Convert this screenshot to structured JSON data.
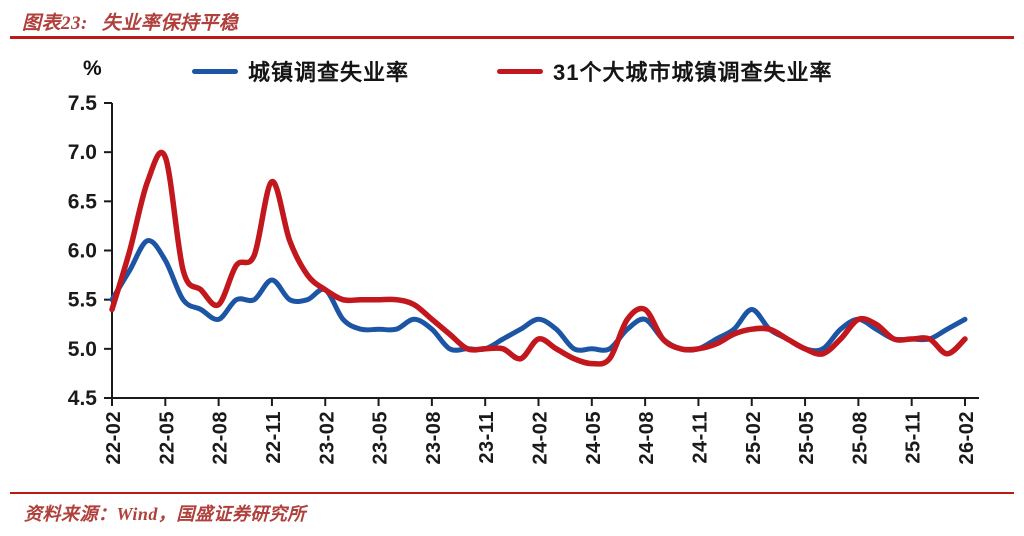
{
  "header": {
    "figure_label": "图表23:",
    "figure_title": "失业率保持平稳"
  },
  "footer": {
    "source_label": "资料来源：Wind，国盛证券研究所"
  },
  "colors": {
    "accent_rule": "#bb1a16",
    "title_red": "#b0403c",
    "axis": "#1a1a1a",
    "tick_text": "#1a1a1a"
  },
  "chart_data": {
    "type": "line",
    "title": "失业率保持平稳",
    "unit_label": "%",
    "ylim": [
      4.5,
      7.5
    ],
    "yticks": [
      7.5,
      7.0,
      6.5,
      6.0,
      5.5,
      5.0,
      4.5
    ],
    "grid": false,
    "legend_position": "top",
    "x_start": "22-02",
    "x_end": "26-02",
    "months_per_tick": 3,
    "x_tick_labels": [
      "22-02",
      "22-05",
      "22-08",
      "22-11",
      "23-02",
      "23-05",
      "23-08",
      "23-11",
      "24-02",
      "24-05",
      "24-08",
      "24-11",
      "25-02",
      "25-05",
      "25-08",
      "25-11",
      "26-02"
    ],
    "axis_color": "#1a1a1a",
    "text_color": "#1a1a1a",
    "series": [
      {
        "name": "城镇调查失业率",
        "color": "#1d55a5",
        "width": 5,
        "values": [
          5.5,
          5.8,
          6.1,
          5.9,
          5.5,
          5.4,
          5.3,
          5.5,
          5.5,
          5.7,
          5.5,
          5.5,
          5.6,
          5.3,
          5.2,
          5.2,
          5.2,
          5.3,
          5.2,
          5.0,
          5.0,
          5.0,
          5.1,
          5.2,
          5.3,
          5.2,
          5.0,
          5.0,
          5.0,
          5.2,
          5.3,
          5.1,
          5.0,
          5.0,
          5.1,
          5.2,
          5.4,
          5.2,
          5.1,
          5.0,
          5.0,
          5.2,
          5.3,
          5.2,
          5.1,
          5.1,
          5.1,
          5.2,
          5.3
        ]
      },
      {
        "name": "31个大城市城镇调查失业率",
        "color": "#c1171d",
        "width": 5.5,
        "values": [
          5.4,
          6.0,
          6.7,
          6.95,
          5.8,
          5.6,
          5.45,
          5.85,
          5.95,
          6.7,
          6.1,
          5.75,
          5.6,
          5.5,
          5.5,
          5.5,
          5.5,
          5.45,
          5.3,
          5.15,
          5.0,
          5.0,
          5.0,
          4.9,
          5.1,
          5.0,
          4.9,
          4.85,
          4.9,
          5.3,
          5.4,
          5.1,
          5.0,
          5.0,
          5.05,
          5.15,
          5.2,
          5.2,
          5.1,
          5.0,
          4.95,
          5.1,
          5.3,
          5.25,
          5.1,
          5.1,
          5.1,
          4.95,
          5.1
        ]
      }
    ]
  }
}
